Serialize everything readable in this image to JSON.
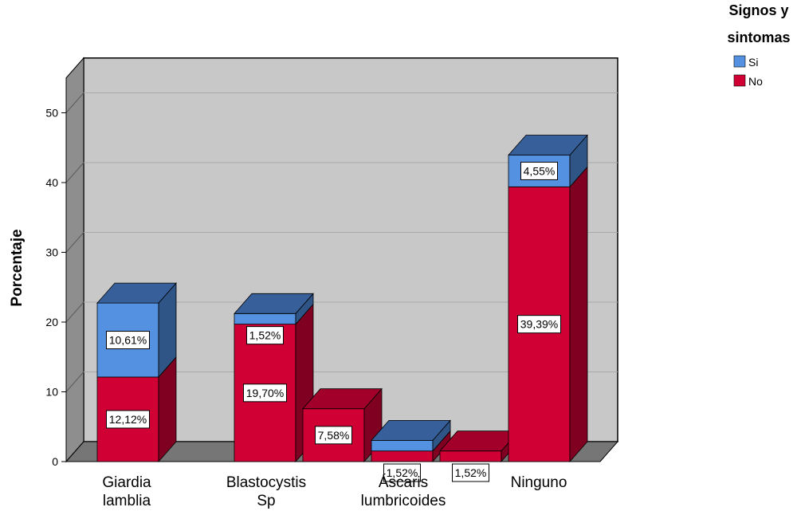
{
  "chart_data": {
    "type": "bar",
    "ylabel": "Porcentaje",
    "ylim": [
      0,
      55
    ],
    "yticks": [
      0,
      10,
      20,
      30,
      40,
      50
    ],
    "grid": true,
    "legend": {
      "title": "Signos y sintomas",
      "position": "top-right"
    },
    "categories": [
      {
        "lines": [
          "Giardia",
          "lamblia"
        ]
      },
      {
        "lines": [
          "Blastocystis",
          "Sp"
        ]
      },
      {
        "lines": [
          "Áscaris",
          "lumbricoides"
        ]
      },
      {
        "lines": [
          "Ninguno"
        ]
      }
    ],
    "series_labels": [
      "Si",
      "No"
    ],
    "bars": [
      {
        "category": 0,
        "slot": 0,
        "segments": [
          {
            "series": "No",
            "value": 12.12,
            "label": "12,12%"
          },
          {
            "series": "Si",
            "value": 10.61,
            "label": "10,61%"
          }
        ]
      },
      {
        "category": 1,
        "slot": 0,
        "segments": [
          {
            "series": "No",
            "value": 19.7,
            "label": "19,70%"
          },
          {
            "series": "Si",
            "value": 1.52,
            "label": "1,52%"
          }
        ]
      },
      {
        "category": 1,
        "slot": 1,
        "segments": [
          {
            "series": "No",
            "value": 7.58,
            "label": "7,58%"
          }
        ]
      },
      {
        "category": 2,
        "slot": 0,
        "segments": [
          {
            "series": "No",
            "value": 1.52,
            "label": "1,52%"
          },
          {
            "series": "Si",
            "value": 1.52,
            "label": ""
          }
        ]
      },
      {
        "category": 2,
        "slot": 1,
        "segments": [
          {
            "series": "No",
            "value": 1.52,
            "label": "1,52%"
          }
        ]
      },
      {
        "category": 3,
        "slot": 0,
        "segments": [
          {
            "series": "No",
            "value": 39.39,
            "label": "39,39%"
          },
          {
            "series": "Si",
            "value": 4.55,
            "label": "4,55%"
          }
        ]
      }
    ],
    "colors": {
      "Si": {
        "front": "#5591e1",
        "side": "#2e5585",
        "top": "#375f99"
      },
      "No": {
        "front": "#d10034",
        "side": "#7f0020",
        "top": "#a2002a"
      },
      "wall": "#c8c8c8",
      "floor": "#767676",
      "left_wall": "#8e8e8e"
    }
  }
}
